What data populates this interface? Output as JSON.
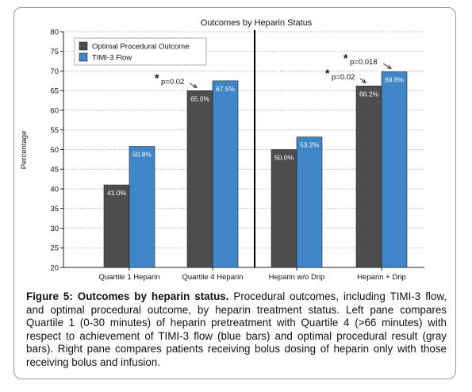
{
  "chart_data": {
    "type": "bar",
    "title": "Outcomes by Heparin Status",
    "ylabel": "Percentage",
    "xlabel": "",
    "ylim": [
      20,
      80
    ],
    "yticks": [
      20,
      25,
      30,
      35,
      40,
      45,
      50,
      55,
      60,
      65,
      70,
      75,
      80
    ],
    "categories": [
      "Quartile 1 Heparin",
      "Quartile 4 Heparin",
      "Heparin w/o Drip",
      "Heparin + Drip"
    ],
    "series": [
      {
        "name": "Optimal Procedural Outcome",
        "values": [
          41.0,
          65.0,
          50.0,
          66.2
        ],
        "labels": [
          "41.0%",
          "65.0%",
          "50.0%",
          "66.2%"
        ],
        "color": "#4d4d4d"
      },
      {
        "name": "TIMI-3 Flow",
        "values": [
          50.8,
          67.5,
          53.2,
          69.8
        ],
        "labels": [
          "50.8%",
          "67.5%",
          "53.2%",
          "69.8%"
        ],
        "color": "#3f86c8"
      }
    ],
    "annotations": [
      {
        "text": "p=0.02",
        "category": 1,
        "series": 0
      },
      {
        "text": "p=0.02",
        "category": 3,
        "series": 0
      },
      {
        "text": "p=0.018",
        "category": 3,
        "series": 1
      }
    ],
    "divider_after_category": 1,
    "grid": "dotted horizontal",
    "legend_position": "top-left"
  },
  "caption": {
    "label": "Figure 5: Outcomes by heparin status.",
    "text": " Procedural outcomes, including TIMI-3 flow, and optimal procedural outcome, by heparin treatment status. Left pane compares Quartile 1 (0-30 minutes) of heparin pretreatment with Quartile 4 (>66 minutes) with respect to achievement of TIMI-3 flow (blue bars) and optimal procedural result (gray bars).  Right pane compares patients receiving bolus dosing of heparin only with those receiving bolus and infusion."
  }
}
